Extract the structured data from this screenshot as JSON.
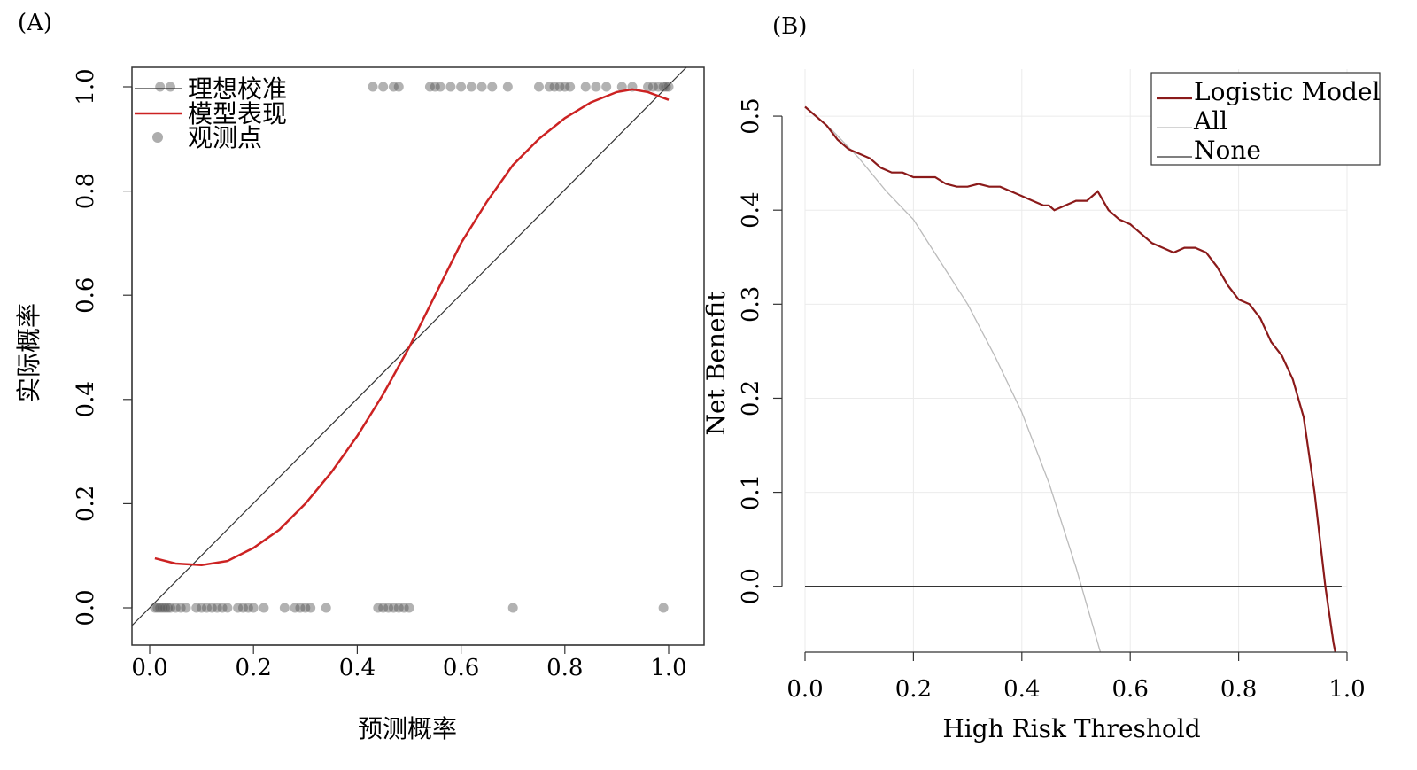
{
  "panels": [
    {
      "label": "(A)",
      "chart_data": {
        "type": "line",
        "xlabel": "预测概率",
        "ylabel": "实际概率",
        "xlim": [
          0.0,
          1.0
        ],
        "ylim": [
          0.0,
          1.0
        ],
        "xticks": [
          "0.0",
          "0.2",
          "0.4",
          "0.6",
          "0.8",
          "1.0"
        ],
        "yticks": [
          "0.0",
          "0.2",
          "0.4",
          "0.6",
          "0.8",
          "1.0"
        ],
        "grid": false,
        "legend_position": "top-left",
        "series": [
          {
            "name": "理想校准",
            "type": "line",
            "color": "#333333",
            "x": [
              0.0,
              1.0
            ],
            "y": [
              0.0,
              1.0
            ]
          },
          {
            "name": "模型表现",
            "type": "line",
            "color": "#cc2222",
            "x": [
              0.01,
              0.05,
              0.1,
              0.15,
              0.2,
              0.25,
              0.3,
              0.35,
              0.4,
              0.45,
              0.5,
              0.55,
              0.6,
              0.65,
              0.7,
              0.75,
              0.8,
              0.85,
              0.9,
              0.93,
              0.96,
              1.0
            ],
            "y": [
              0.095,
              0.085,
              0.082,
              0.09,
              0.115,
              0.15,
              0.2,
              0.26,
              0.33,
              0.41,
              0.5,
              0.6,
              0.7,
              0.78,
              0.85,
              0.9,
              0.94,
              0.97,
              0.99,
              0.995,
              0.99,
              0.975
            ]
          },
          {
            "name": "观测点",
            "type": "scatter",
            "color": "#777777",
            "x": [
              0.01,
              0.015,
              0.02,
              0.025,
              0.03,
              0.035,
              0.04,
              0.05,
              0.06,
              0.07,
              0.09,
              0.1,
              0.11,
              0.12,
              0.13,
              0.14,
              0.15,
              0.17,
              0.18,
              0.19,
              0.2,
              0.22,
              0.26,
              0.28,
              0.29,
              0.3,
              0.31,
              0.34,
              0.44,
              0.45,
              0.46,
              0.47,
              0.48,
              0.49,
              0.5,
              0.7,
              0.99,
              0.02,
              0.04,
              0.43,
              0.45,
              0.47,
              0.48,
              0.54,
              0.55,
              0.56,
              0.58,
              0.6,
              0.62,
              0.64,
              0.66,
              0.69,
              0.75,
              0.77,
              0.78,
              0.79,
              0.8,
              0.81,
              0.84,
              0.86,
              0.88,
              0.91,
              0.93,
              0.96,
              0.97,
              0.98,
              0.99,
              0.995,
              1.0
            ],
            "y": [
              0,
              0,
              0,
              0,
              0,
              0,
              0,
              0,
              0,
              0,
              0,
              0,
              0,
              0,
              0,
              0,
              0,
              0,
              0,
              0,
              0,
              0,
              0,
              0,
              0,
              0,
              0,
              0,
              0,
              0,
              0,
              0,
              0,
              0,
              0,
              0,
              0,
              1,
              1,
              1,
              1,
              1,
              1,
              1,
              1,
              1,
              1,
              1,
              1,
              1,
              1,
              1,
              1,
              1,
              1,
              1,
              1,
              1,
              1,
              1,
              1,
              1,
              1,
              1,
              1,
              1,
              1,
              1,
              1
            ]
          }
        ]
      }
    },
    {
      "label": "(B)",
      "chart_data": {
        "type": "line",
        "xlabel": "High Risk Threshold",
        "ylabel": "Net Benefit",
        "xlim": [
          0.0,
          1.0
        ],
        "ylim": [
          -0.07,
          0.55
        ],
        "xticks": [
          "0.0",
          "0.2",
          "0.4",
          "0.6",
          "0.8",
          "1.0"
        ],
        "yticks": [
          "0.0",
          "0.1",
          "0.2",
          "0.3",
          "0.4",
          "0.5"
        ],
        "grid": true,
        "legend_position": "top-right",
        "series": [
          {
            "name": "Logistic Model",
            "type": "line",
            "color": "#8b1a1a",
            "x": [
              0.0,
              0.02,
              0.04,
              0.06,
              0.08,
              0.1,
              0.12,
              0.14,
              0.16,
              0.18,
              0.2,
              0.22,
              0.24,
              0.26,
              0.28,
              0.3,
              0.32,
              0.34,
              0.36,
              0.38,
              0.4,
              0.42,
              0.44,
              0.45,
              0.46,
              0.48,
              0.5,
              0.52,
              0.54,
              0.55,
              0.56,
              0.58,
              0.6,
              0.62,
              0.64,
              0.66,
              0.68,
              0.7,
              0.72,
              0.74,
              0.76,
              0.78,
              0.8,
              0.82,
              0.84,
              0.86,
              0.88,
              0.9,
              0.92,
              0.94,
              0.95,
              0.96,
              0.97,
              0.975,
              0.98
            ],
            "y": [
              0.51,
              0.5,
              0.49,
              0.475,
              0.465,
              0.46,
              0.455,
              0.445,
              0.44,
              0.44,
              0.435,
              0.435,
              0.435,
              0.428,
              0.425,
              0.425,
              0.428,
              0.425,
              0.425,
              0.42,
              0.415,
              0.41,
              0.405,
              0.405,
              0.4,
              0.405,
              0.41,
              0.41,
              0.42,
              0.41,
              0.4,
              0.39,
              0.385,
              0.375,
              0.365,
              0.36,
              0.355,
              0.36,
              0.36,
              0.355,
              0.34,
              0.32,
              0.305,
              0.3,
              0.285,
              0.26,
              0.245,
              0.22,
              0.18,
              0.1,
              0.05,
              0.0,
              -0.04,
              -0.06,
              -0.075
            ]
          },
          {
            "name": "All",
            "type": "line",
            "color": "#bbbbbb",
            "x": [
              0.0,
              0.05,
              0.1,
              0.15,
              0.2,
              0.25,
              0.3,
              0.35,
              0.4,
              0.45,
              0.5,
              0.52,
              0.545
            ],
            "y": [
              0.51,
              0.485,
              0.455,
              0.42,
              0.39,
              0.345,
              0.3,
              0.245,
              0.185,
              0.11,
              0.02,
              -0.02,
              -0.07
            ]
          },
          {
            "name": "None",
            "type": "line",
            "color": "#333333",
            "x": [
              0.0,
              0.99
            ],
            "y": [
              0.0,
              0.0
            ]
          }
        ]
      }
    }
  ]
}
